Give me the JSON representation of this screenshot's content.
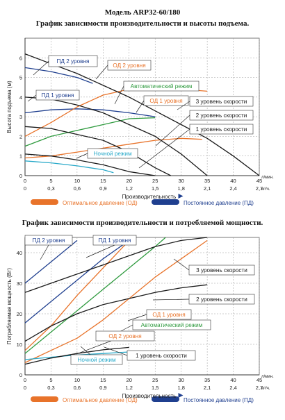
{
  "header": {
    "model": "Модель ARP32-60/180",
    "chart1_title": "График зависимости производительности и высоты подъема.",
    "chart2_title": "График зависимости производительности и потребляемой мощности."
  },
  "legend": {
    "optimal": "Оптимальное давление (ОД)",
    "constant": "Постоянное давление (ПД)"
  },
  "colors": {
    "od": "#e8732a",
    "pd": "#1f3f8f",
    "auto": "#2e9a3e",
    "night": "#28a9c9",
    "speed": "#1a1a1a"
  },
  "chart_data": [
    {
      "type": "line",
      "title": "График зависимости производительности и высоты подъема.",
      "xlabel": "Производительность",
      "ylabel": "Высота подъема (м)",
      "x_unit": "л/мин.",
      "x2_unit": "м³/ч.",
      "xlim": [
        0,
        45
      ],
      "ylim": [
        0,
        7
      ],
      "x_ticks": [
        "0",
        "5",
        "10",
        "15",
        "20",
        "25",
        "30",
        "35",
        "40",
        "45"
      ],
      "x2_ticks": [
        "0",
        "0,3",
        "0,6",
        "0,9",
        "1,2",
        "1,5",
        "1,8",
        "2,1",
        "2,4",
        "2,7"
      ],
      "y_ticks": [
        "0",
        "1",
        "2",
        "3",
        "4",
        "5",
        "6"
      ],
      "grid": true,
      "series": [
        {
          "name": "ПД 2 уровня",
          "color": "pd",
          "x": [
            0,
            5,
            10,
            13
          ],
          "y": [
            5.5,
            5.3,
            5.0,
            4.7
          ]
        },
        {
          "name": "ПД 1 уровня",
          "color": "pd",
          "x": [
            0,
            5,
            10,
            15,
            20,
            25
          ],
          "y": [
            3.2,
            3.35,
            3.4,
            3.35,
            3.2,
            3.0
          ]
        },
        {
          "name": "ОД 2 уровня",
          "color": "od",
          "x": [
            0,
            5,
            10,
            15,
            20,
            25,
            30,
            35
          ],
          "y": [
            2.0,
            2.7,
            3.5,
            4.1,
            4.4,
            4.5,
            4.4,
            4.3
          ]
        },
        {
          "name": "Автоматический режим",
          "color": "auto",
          "x": [
            0,
            5,
            10,
            15,
            20,
            25
          ],
          "y": [
            1.5,
            2.0,
            2.3,
            2.6,
            2.9,
            2.95
          ]
        },
        {
          "name": "ОД 1 уровня",
          "color": "od",
          "x": [
            0,
            5,
            10,
            15,
            20,
            25,
            30,
            34
          ],
          "y": [
            0.9,
            1.0,
            1.2,
            1.4,
            1.6,
            1.8,
            1.9,
            1.85
          ]
        },
        {
          "name": "Ночной режим",
          "color": "night",
          "x": [
            0,
            5,
            10,
            15,
            17
          ],
          "y": [
            0.75,
            0.65,
            0.5,
            0.3,
            0.15
          ]
        },
        {
          "name": "3 уровень скорости",
          "color": "speed",
          "x": [
            0,
            5,
            10,
            15,
            20,
            25,
            30,
            35,
            40,
            45
          ],
          "y": [
            6.2,
            5.7,
            5.2,
            4.6,
            4.0,
            3.3,
            2.6,
            1.9,
            1.0,
            0.0
          ]
        },
        {
          "name": "2 уровень скорости",
          "color": "speed",
          "x": [
            0,
            5,
            10,
            15,
            20,
            25,
            30,
            35
          ],
          "y": [
            4.0,
            3.9,
            3.6,
            3.2,
            2.6,
            2.0,
            1.1,
            0.0
          ]
        },
        {
          "name": "1 уровень скорости",
          "color": "speed",
          "x": [
            0,
            5,
            10,
            15,
            20,
            25,
            28
          ],
          "y": [
            2.5,
            2.4,
            2.1,
            1.8,
            1.2,
            0.4,
            0.0
          ]
        },
        {
          "name": "",
          "color": "speed",
          "x": [
            0,
            5,
            10,
            15,
            20,
            25
          ],
          "y": [
            1.1,
            1.0,
            0.8,
            0.55,
            0.2,
            0.0
          ]
        }
      ],
      "labels": [
        {
          "text": "ПД 2 уровня",
          "color": "pd"
        },
        {
          "text": "ОД 2 уровня",
          "color": "od"
        },
        {
          "text": "ПД 1 уровня",
          "color": "pd"
        },
        {
          "text": "Автоматический режим",
          "color": "auto"
        },
        {
          "text": "ОД 1 уровня",
          "color": "od"
        },
        {
          "text": "3 уровень скорости",
          "color": "speed"
        },
        {
          "text": "2 уровень скорости",
          "color": "speed"
        },
        {
          "text": "1 уровень скорости",
          "color": "speed"
        },
        {
          "text": "Ночной режим",
          "color": "night"
        }
      ]
    },
    {
      "type": "line",
      "title": "График зависимости производительности и потребляемой мощности.",
      "xlabel": "Производительность",
      "ylabel": "Потребляемая мощность (Вт)",
      "x_unit": "л/мин.",
      "x2_unit": "м³/ч.",
      "xlim": [
        0,
        45
      ],
      "ylim": [
        0,
        45
      ],
      "x_ticks": [
        "0",
        "5",
        "10",
        "15",
        "20",
        "25",
        "30",
        "35",
        "40",
        "45"
      ],
      "x2_ticks": [
        "0",
        "0,3",
        "0,6",
        "0,9",
        "1,2",
        "1,5",
        "1,8",
        "2,1",
        "2,4",
        "2,7"
      ],
      "y_ticks": [
        "0",
        "10",
        "20",
        "30",
        "40"
      ],
      "grid": true,
      "series": [
        {
          "name": "ПД 2 уровня",
          "color": "pd",
          "x": [
            0,
            5,
            10
          ],
          "y": [
            30,
            37,
            44
          ]
        },
        {
          "name": "ПД 1 уровня",
          "color": "pd",
          "x": [
            0,
            5,
            10,
            15,
            20
          ],
          "y": [
            17,
            24,
            31,
            38,
            44
          ]
        },
        {
          "name": "ОД 2 уровня",
          "color": "od",
          "x": [
            0,
            5,
            10,
            15,
            20,
            25,
            30,
            35
          ],
          "y": [
            4,
            8,
            12,
            18,
            25,
            32,
            38,
            44
          ]
        },
        {
          "name": "Автоматический режим",
          "color": "auto",
          "x": [
            0,
            5,
            10,
            15,
            20,
            25,
            27
          ],
          "y": [
            7,
            14,
            21,
            28,
            35,
            42,
            45
          ]
        },
        {
          "name": "ОД 1 уровня",
          "color": "od",
          "x": [
            0,
            5,
            10,
            15,
            20
          ],
          "y": [
            8,
            16,
            26,
            35,
            44
          ]
        },
        {
          "name": "Ночной режим",
          "color": "night",
          "x": [
            0,
            5,
            10,
            15,
            20
          ],
          "y": [
            5,
            5.8,
            6.5,
            7,
            7.5
          ]
        },
        {
          "name": "3 уровень скорости",
          "color": "speed",
          "x": [
            0,
            5,
            10,
            15,
            20,
            25,
            30,
            35
          ],
          "y": [
            27,
            30,
            33,
            36,
            39,
            42,
            44,
            45
          ]
        },
        {
          "name": "2 уровень скорости",
          "color": "speed",
          "x": [
            0,
            5,
            10,
            15,
            20,
            25,
            30,
            35
          ],
          "y": [
            11,
            16,
            20,
            23,
            25,
            27,
            28.5,
            29.5
          ]
        },
        {
          "name": "1 уровень скорости",
          "color": "speed",
          "x": [
            0,
            5,
            10,
            15,
            20
          ],
          "y": [
            3.5,
            5.5,
            7,
            8.2,
            9
          ]
        }
      ],
      "labels": [
        {
          "text": "ПД 2 уровня",
          "color": "pd"
        },
        {
          "text": "ПД 1 уровня",
          "color": "pd"
        },
        {
          "text": "3 уровень скорости",
          "color": "speed"
        },
        {
          "text": "2 уровень скорости",
          "color": "speed"
        },
        {
          "text": "ОД 1 уровня",
          "color": "od"
        },
        {
          "text": "Автоматический режим",
          "color": "auto"
        },
        {
          "text": "ОД 2 уровня",
          "color": "od"
        },
        {
          "text": "1 уровень скорости",
          "color": "speed"
        },
        {
          "text": "Ночной режим",
          "color": "night"
        }
      ]
    }
  ]
}
